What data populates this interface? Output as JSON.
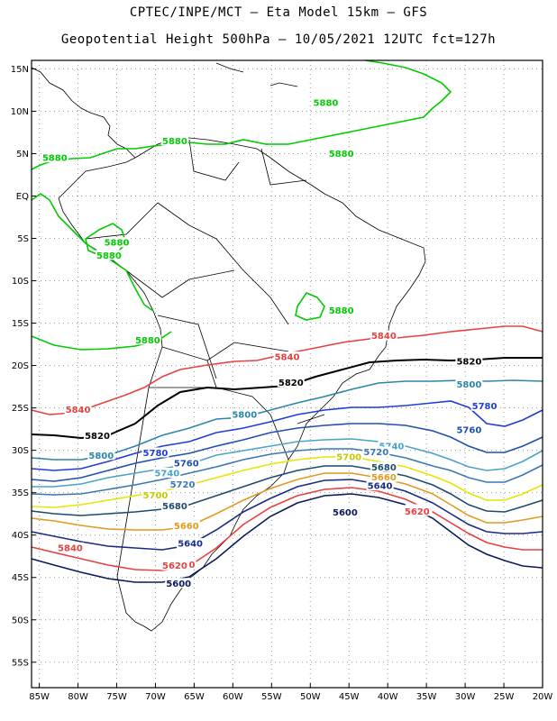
{
  "header": {
    "line1": "CPTEC/INPE/MCT –  Eta Model 15km – GFS",
    "line2": "Geopotential Height 500hPa – 10/05/2021 12UTC fct=127h"
  },
  "axes": {
    "lat_labels": [
      "15N",
      "10N",
      "5N",
      "EQ",
      "5S",
      "10S",
      "15S",
      "20S",
      "25S",
      "30S",
      "35S",
      "40S",
      "45S",
      "50S",
      "55S"
    ],
    "lon_labels": [
      "85W",
      "80W",
      "75W",
      "70W",
      "65W",
      "60W",
      "55W",
      "50W",
      "45W",
      "40W",
      "35W",
      "30W",
      "25W",
      "20W"
    ],
    "grid": "dotted"
  },
  "chart_data": {
    "type": "contour",
    "variable": "Geopotential Height 500hPa",
    "lon_range": [
      -86,
      -20
    ],
    "lat_range": [
      16,
      -58
    ],
    "contours": [
      {
        "value": "5880",
        "color": "#00cc00",
        "labels": [
          [
            -48,
            11
          ],
          [
            -67.5,
            6.5
          ],
          [
            -46,
            5
          ],
          [
            -83,
            4.5
          ],
          [
            -75,
            -5.5
          ],
          [
            -76,
            -7
          ],
          [
            -46,
            -13.5
          ],
          [
            -71,
            -17
          ]
        ]
      },
      {
        "value": "5840",
        "color": "#e84040",
        "labels": [
          [
            -40.5,
            -16.5
          ],
          [
            -53,
            -19
          ],
          [
            -80,
            -25.2
          ],
          [
            -81,
            -41.5
          ],
          [
            -66.5,
            -43.5
          ],
          [
            -36,
            -37
          ]
        ]
      },
      {
        "value": "5820",
        "color": "#000000",
        "labels": [
          [
            -29.5,
            -19.5
          ],
          [
            -52.5,
            -22
          ],
          [
            -77.5,
            -28.3
          ]
        ]
      },
      {
        "value": "5800",
        "color": "#2b86a8",
        "labels": [
          [
            -29.5,
            -22.2
          ],
          [
            -58.5,
            -25.8
          ],
          [
            -77,
            -30.6
          ]
        ]
      },
      {
        "value": "5780",
        "color": "#1e3cdc",
        "labels": [
          [
            -27.5,
            -24.8
          ],
          [
            -70,
            -30.3
          ]
        ]
      },
      {
        "value": "5760",
        "color": "#1f4fb0",
        "labels": [
          [
            -29.5,
            -27.6
          ],
          [
            -66,
            -31.5
          ]
        ]
      },
      {
        "value": "5740",
        "color": "#4aa3c8",
        "labels": [
          [
            -39.5,
            -29.5
          ],
          [
            -68.5,
            -32.7
          ]
        ]
      },
      {
        "value": "5720",
        "color": "#3a78b0",
        "labels": [
          [
            -41.5,
            -30.2
          ],
          [
            -66.5,
            -34
          ]
        ]
      },
      {
        "value": "5700",
        "color": "#e6e600",
        "labels": [
          [
            -45,
            -30.8
          ],
          [
            -70,
            -35.3
          ]
        ]
      },
      {
        "value": "5680",
        "color": "#1f4a70",
        "labels": [
          [
            -40.5,
            -32
          ],
          [
            -67.5,
            -36.6
          ]
        ]
      },
      {
        "value": "5660",
        "color": "#e09a20",
        "labels": [
          [
            -40.5,
            -33.2
          ],
          [
            -66,
            -38.9
          ]
        ]
      },
      {
        "value": "5640",
        "color": "#1a2a8a",
        "labels": [
          [
            -41,
            -34.2
          ],
          [
            -65.5,
            -41
          ]
        ]
      }
    ]
  }
}
